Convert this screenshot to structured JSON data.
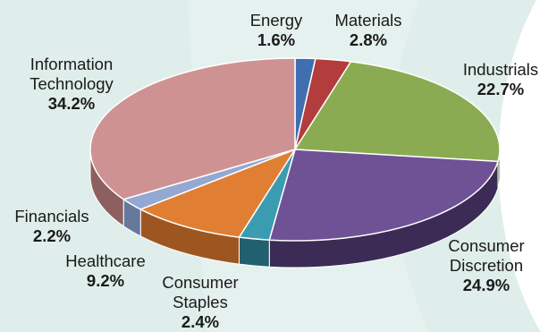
{
  "chart_data": {
    "type": "pie",
    "title": "",
    "slices": [
      {
        "name": "Energy",
        "value": 1.6,
        "label_lines": [
          "Energy"
        ],
        "value_label": "1.6%",
        "top_color": "#3f6fb0",
        "side_color": "#274a7a"
      },
      {
        "name": "Materials",
        "value": 2.8,
        "label_lines": [
          "Materials"
        ],
        "value_label": "2.8%",
        "top_color": "#b33c3c",
        "side_color": "#7a2424"
      },
      {
        "name": "Industrials",
        "value": 22.7,
        "label_lines": [
          "Industrials"
        ],
        "value_label": "22.7%",
        "top_color": "#8bab52",
        "side_color": "#5d7435"
      },
      {
        "name": "Consumer Discretion",
        "value": 24.9,
        "label_lines": [
          "Consumer",
          "Discretion"
        ],
        "value_label": "24.9%",
        "top_color": "#6f5196",
        "side_color": "#3b2b55"
      },
      {
        "name": "Consumer Staples",
        "value": 2.4,
        "label_lines": [
          "Consumer",
          "Staples"
        ],
        "value_label": "2.4%",
        "top_color": "#3b9bb1",
        "side_color": "#226070"
      },
      {
        "name": "Healthcare",
        "value": 9.2,
        "label_lines": [
          "Healthcare"
        ],
        "value_label": "9.2%",
        "top_color": "#e07f33",
        "side_color": "#9e5620"
      },
      {
        "name": "Financials",
        "value": 2.2,
        "label_lines": [
          "Financials"
        ],
        "value_label": "2.2%",
        "top_color": "#93a8d2",
        "side_color": "#66799c"
      },
      {
        "name": "Information Technology",
        "value": 34.2,
        "label_lines": [
          "Information",
          "Technology"
        ],
        "value_label": "34.2%",
        "top_color": "#cf9292",
        "side_color": "#8e5f5f"
      }
    ]
  },
  "colors": {
    "background_panel": "#dfeeea",
    "background_panel_light": "#eaf4f1",
    "slice_border": "#ffffff"
  }
}
